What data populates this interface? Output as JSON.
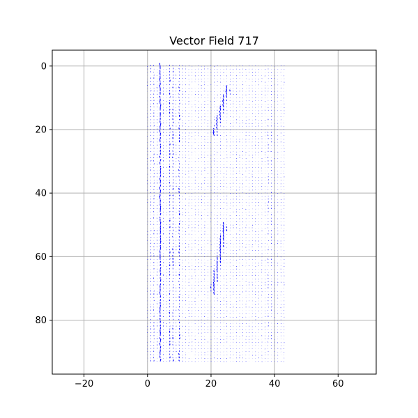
{
  "chart_data": {
    "type": "quiver",
    "title": "Vector Field 717",
    "xlabel": "",
    "ylabel": "",
    "xlim": [
      -30,
      72
    ],
    "ylim": [
      97,
      -5
    ],
    "y_inverted": true,
    "grid": true,
    "x_ticks": [
      -20,
      0,
      20,
      40,
      60
    ],
    "y_ticks": [
      0,
      20,
      40,
      60,
      80
    ],
    "x_tick_labels": [
      "−20",
      "0",
      "20",
      "40",
      "60"
    ],
    "y_tick_labels": [
      "0",
      "20",
      "40",
      "60",
      "80"
    ],
    "arrow_color": "#0000ff",
    "field_grid": {
      "x_start": 0,
      "x_end": 43,
      "x_step": 1,
      "y_start": 0,
      "y_end": 93,
      "y_step": 1
    },
    "features": [
      {
        "kind": "vertical-band",
        "x": 1.5,
        "y0": 0,
        "y1": 93,
        "strength": 0.45
      },
      {
        "kind": "vertical-band",
        "x": 4,
        "y0": 0,
        "y1": 93,
        "strength": 1.0
      },
      {
        "kind": "vertical-band",
        "x": 7.5,
        "y0": 0,
        "y1": 93,
        "strength": 0.8
      },
      {
        "kind": "vertical-band",
        "x": 10,
        "y0": 0,
        "y1": 93,
        "strength": 0.45
      },
      {
        "kind": "diagonal-streak",
        "x0": 21,
        "y0": 22,
        "x1": 25.5,
        "y1": 7,
        "strength": 1.0
      },
      {
        "kind": "diagonal-streak",
        "x0": 20.5,
        "y0": 72,
        "x1": 24.5,
        "y1": 50,
        "strength": 1.0
      },
      {
        "kind": "vertical-band",
        "x": 38.5,
        "y0": 15,
        "y1": 88,
        "strength": 0.35
      }
    ]
  },
  "colors": {
    "axes_edge": "#000000",
    "grid": "#b0b0b0",
    "background": "#ffffff",
    "arrows": "#0000ff"
  }
}
